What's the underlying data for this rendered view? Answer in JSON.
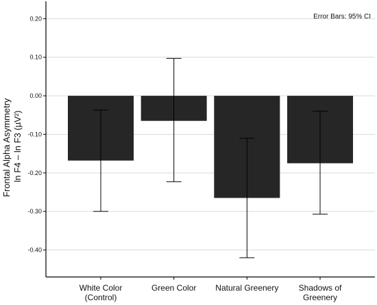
{
  "chart_data": {
    "type": "bar",
    "categories": [
      [
        "White Color",
        "(Control)"
      ],
      [
        "Green Color"
      ],
      [
        "Natural Greenery"
      ],
      [
        "Shadows of",
        "Greenery"
      ]
    ],
    "values": [
      -0.168,
      -0.065,
      -0.265,
      -0.175
    ],
    "error_bars": {
      "low": [
        -0.3,
        -0.223,
        -0.42,
        -0.307
      ],
      "high": [
        -0.037,
        0.097,
        -0.11,
        -0.04
      ]
    },
    "ylim": [
      -0.47,
      0.245
    ],
    "yticks": [
      0.2,
      0.1,
      0.0,
      -0.1,
      -0.2,
      -0.3,
      -0.4
    ],
    "ytick_labels": [
      "0.20",
      "0.10",
      "0.00",
      "-0.10",
      "-0.20",
      "-0.30",
      "-0.40"
    ],
    "ylabel_lines": [
      "Frontal Alpha Asymmetry",
      "ln F4 – ln F3 (µV²)"
    ],
    "xlabel": "",
    "annotation": "Error Bars: 95% CI",
    "grid": "horizontal",
    "colors": {
      "bar": "#262626",
      "gridline": "#d9d9d9",
      "axis": "#000000"
    }
  }
}
